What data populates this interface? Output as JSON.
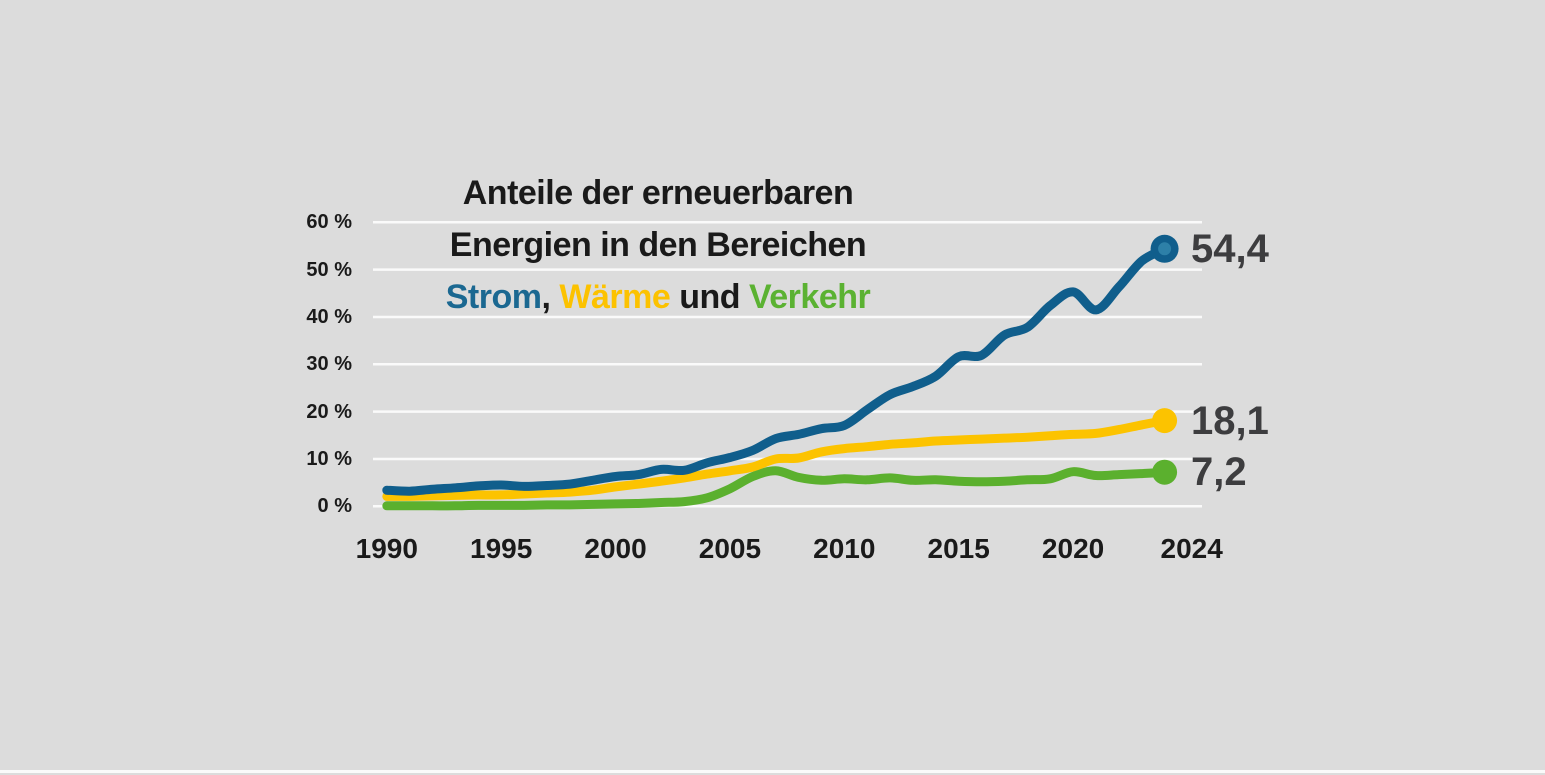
{
  "background_color": "#dcdcdc",
  "title": {
    "line1": "Anteile der erneuerbaren",
    "line2": "Energien in den Bereichen",
    "line3_parts": [
      {
        "text": "Strom",
        "color": "#1b6891"
      },
      {
        "text": ", ",
        "color": "#1a1a1a"
      },
      {
        "text": "Wärme",
        "color": "#fcc200"
      },
      {
        "text": " und ",
        "color": "#1a1a1a"
      },
      {
        "text": "Verkehr",
        "color": "#5bb232"
      }
    ]
  },
  "chart_data": {
    "type": "line",
    "title": "Anteile der erneuerbaren Energien in den Bereichen Strom, Wärme und Verkehr",
    "unit": "%",
    "grid": true,
    "gridline_color": "#fafafa",
    "value_label_color": "#3d3d3f",
    "ylim": [
      0,
      63
    ],
    "y_ticks": [
      "0 %",
      "10 %",
      "20 %",
      "30 %",
      "40 %",
      "50 %",
      "60 %"
    ],
    "y_tick_values": [
      0,
      10,
      20,
      30,
      40,
      50,
      60
    ],
    "x_ticks": [
      "1990",
      "1995",
      "2000",
      "2005",
      "2010",
      "2015",
      "2020",
      "2024"
    ],
    "x_tick_values": [
      1990,
      1995,
      2000,
      2005,
      2010,
      2015,
      2020,
      2024
    ],
    "x": [
      1990,
      1991,
      1992,
      1993,
      1994,
      1995,
      1996,
      1997,
      1998,
      1999,
      2000,
      2001,
      2002,
      2003,
      2004,
      2005,
      2006,
      2007,
      2008,
      2009,
      2010,
      2011,
      2012,
      2013,
      2014,
      2015,
      2016,
      2017,
      2018,
      2019,
      2020,
      2021,
      2022,
      2023,
      2024
    ],
    "series": [
      {
        "name": "Strom",
        "color": "#105e8c",
        "marker_inner_color": "#2d80a8",
        "end_label": "54,4",
        "end_value": 54.4,
        "values": [
          3.4,
          3.2,
          3.6,
          3.9,
          4.3,
          4.5,
          4.2,
          4.4,
          4.7,
          5.5,
          6.3,
          6.7,
          7.8,
          7.6,
          9.2,
          10.3,
          11.8,
          14.3,
          15.2,
          16.4,
          17.1,
          20.4,
          23.6,
          25.3,
          27.5,
          31.6,
          31.9,
          36.2,
          37.8,
          42.4,
          45.3,
          41.5,
          46.3,
          51.8,
          54.4
        ]
      },
      {
        "name": "Wärme",
        "color": "#fcc300",
        "end_label": "18,1",
        "end_value": 18.1,
        "values": [
          2.1,
          2.1,
          2.2,
          2.3,
          2.4,
          2.4,
          2.6,
          2.8,
          3.0,
          3.4,
          4.1,
          4.7,
          5.3,
          6.0,
          6.8,
          7.5,
          8.3,
          10.0,
          10.2,
          11.5,
          12.2,
          12.6,
          13.1,
          13.4,
          13.8,
          14.0,
          14.2,
          14.4,
          14.6,
          14.9,
          15.2,
          15.4,
          16.2,
          17.2,
          18.1
        ]
      },
      {
        "name": "Verkehr",
        "color": "#5bb02e",
        "end_label": "7,2",
        "end_value": 7.2,
        "values": [
          0.1,
          0.1,
          0.1,
          0.1,
          0.2,
          0.2,
          0.2,
          0.3,
          0.3,
          0.4,
          0.5,
          0.6,
          0.8,
          1.0,
          1.8,
          3.7,
          6.3,
          7.5,
          6.1,
          5.5,
          5.8,
          5.6,
          6.0,
          5.5,
          5.6,
          5.3,
          5.2,
          5.3,
          5.6,
          5.8,
          7.3,
          6.5,
          6.7,
          6.9,
          7.2
        ]
      }
    ]
  }
}
